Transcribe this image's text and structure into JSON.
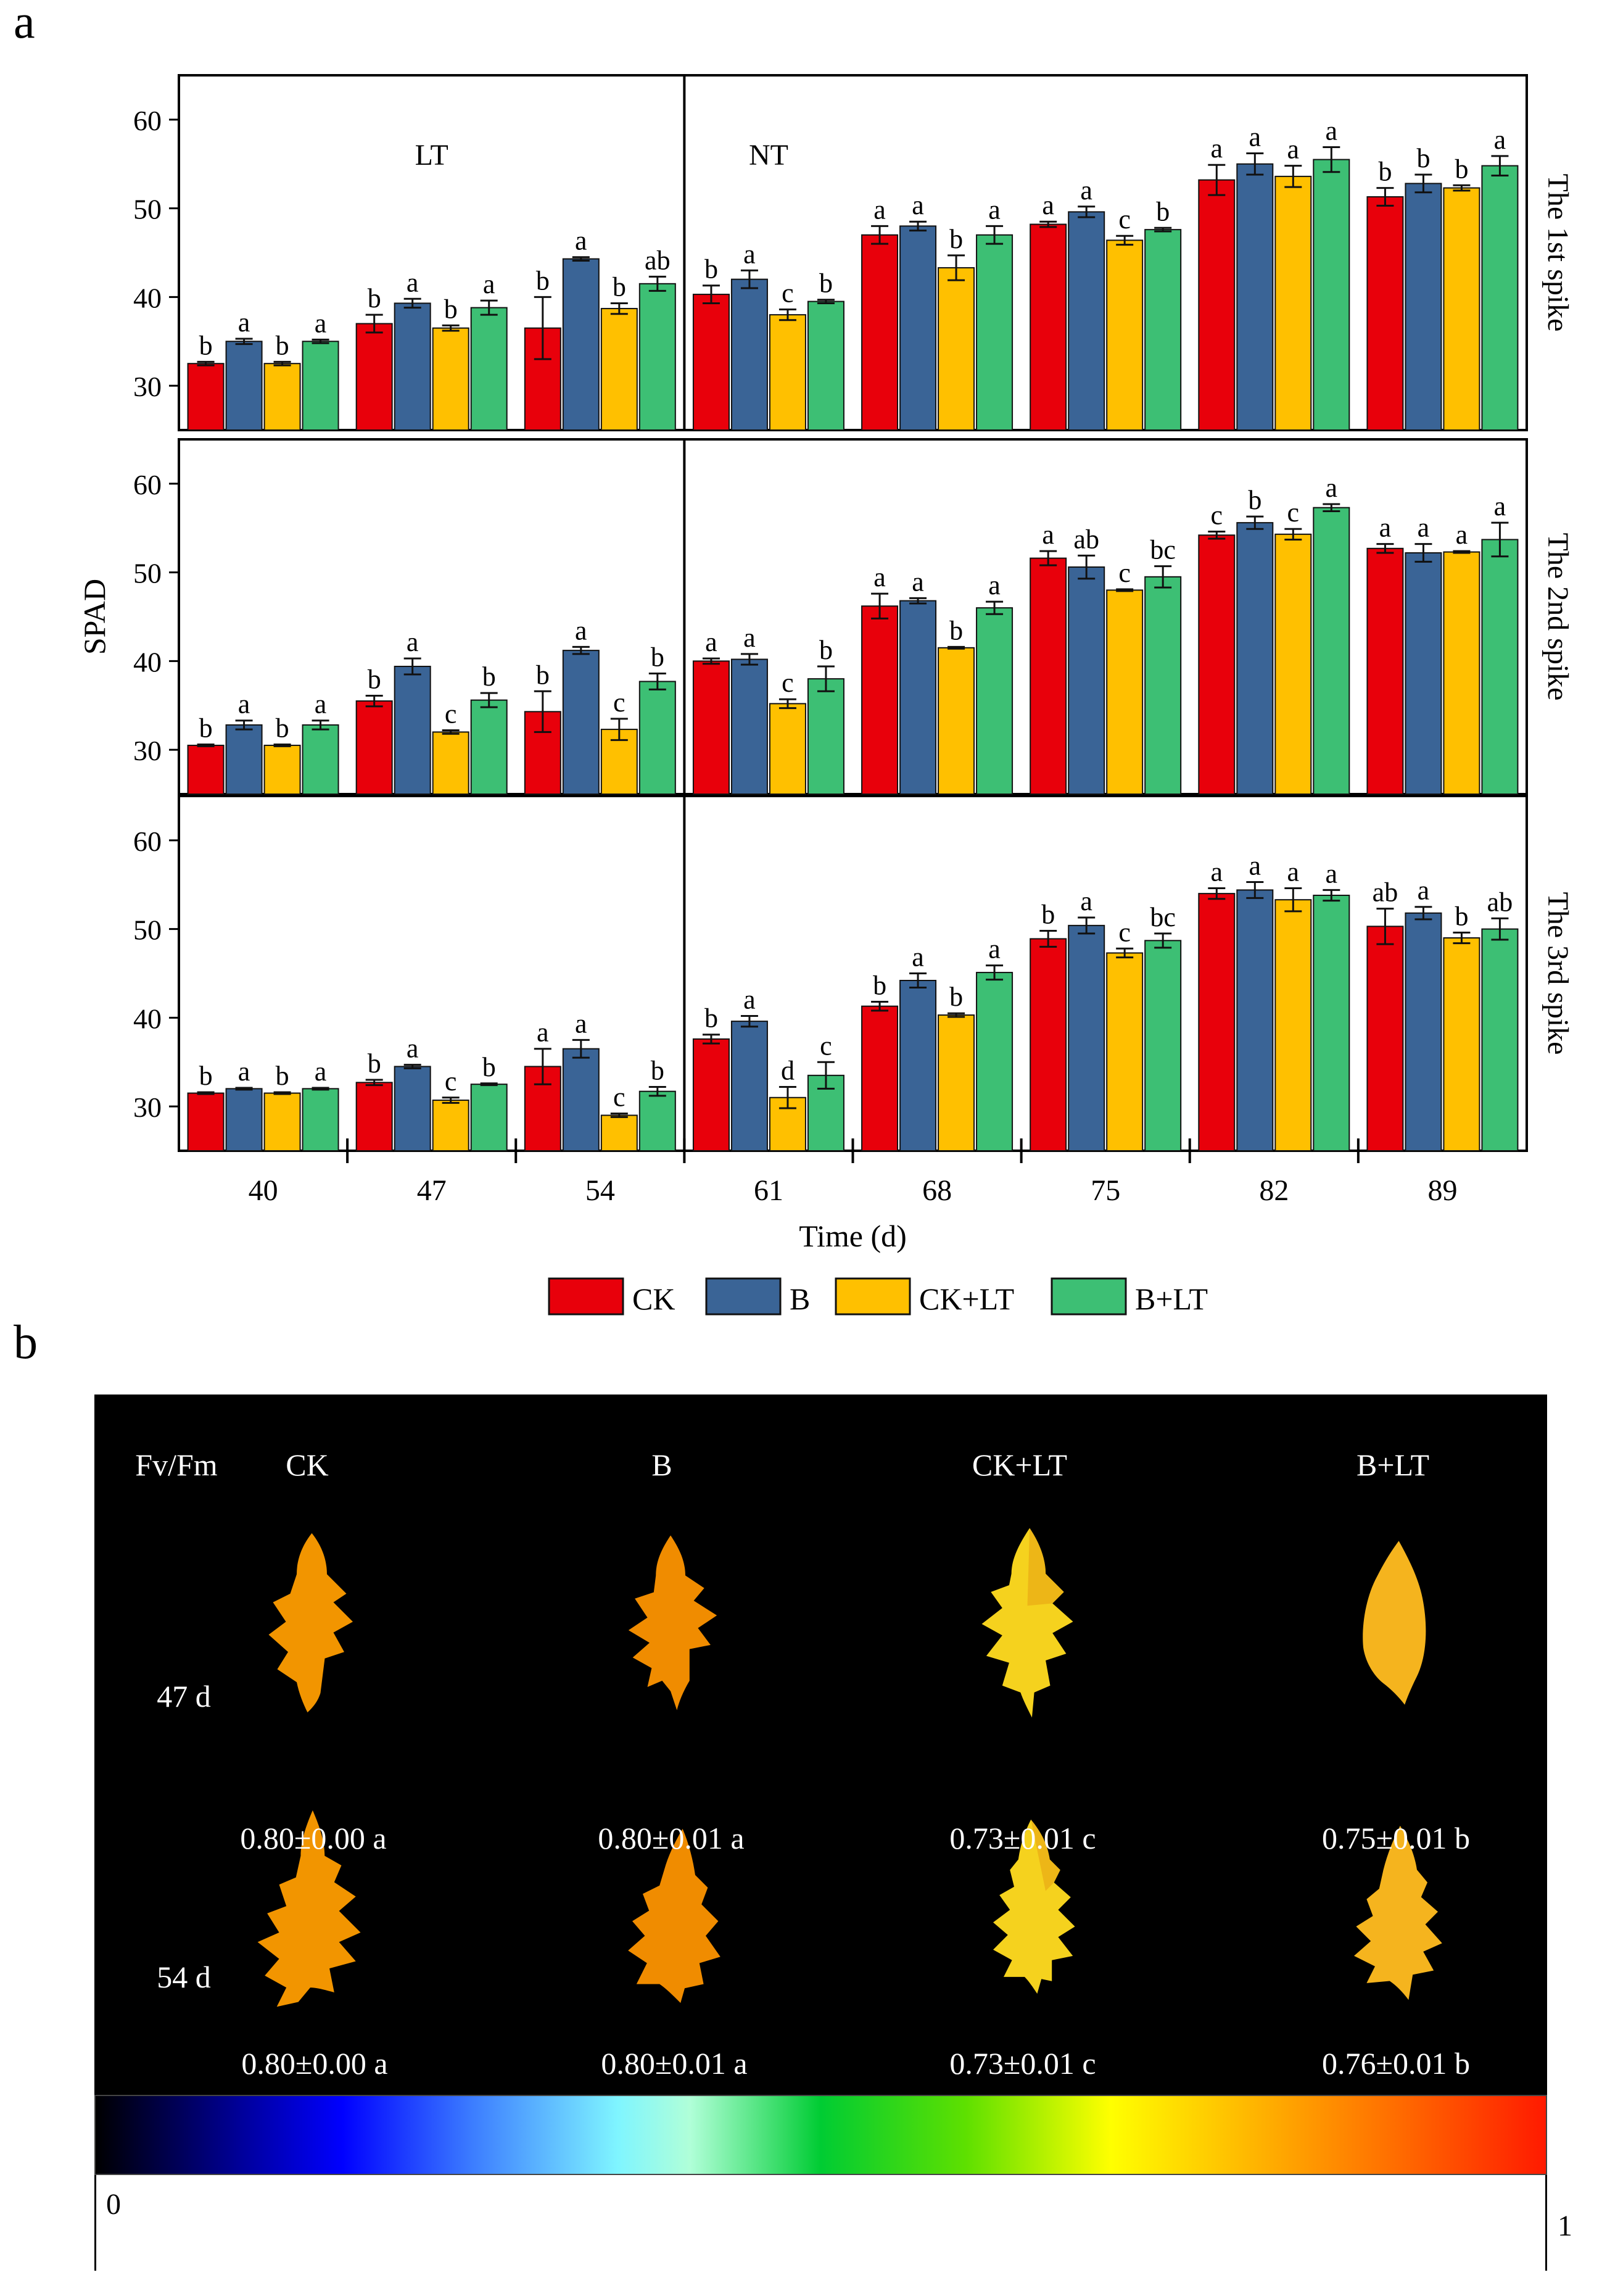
{
  "figure": {
    "panel_a_letter": "a",
    "panel_b_letter": "b"
  },
  "chart_data": {
    "type": "bar",
    "ylabel": "SPAD",
    "xlabel": "Time (d)",
    "categories": [
      "40",
      "47",
      "54",
      "61",
      "68",
      "75",
      "82",
      "89"
    ],
    "yticks": [
      30,
      40,
      50,
      60
    ],
    "ylim": [
      25,
      65
    ],
    "period_labels": [
      "LT",
      "NT"
    ],
    "legend": [
      {
        "name": "CK",
        "color": "#e8000b"
      },
      {
        "name": "B",
        "color": "#3a6496"
      },
      {
        "name": "CK+LT",
        "color": "#ffc000"
      },
      {
        "name": "B+LT",
        "color": "#3dbf74"
      }
    ],
    "panels": [
      {
        "label": "The 1st spike",
        "series": [
          {
            "name": "CK",
            "values": [
              32.5,
              37,
              36.5,
              40.3,
              47,
              48.2,
              53.2,
              51.3
            ],
            "errors": [
              0.2,
              1.0,
              3.5,
              1.0,
              1.0,
              0.3,
              1.7,
              1.0
            ]
          },
          {
            "name": "B",
            "values": [
              35,
              39.3,
              44.3,
              42,
              48,
              49.6,
              55,
              52.8
            ],
            "errors": [
              0.3,
              0.5,
              0.2,
              1.0,
              0.5,
              0.6,
              1.2,
              1.0
            ]
          },
          {
            "name": "CK+LT",
            "values": [
              32.5,
              36.5,
              38.7,
              38,
              43.3,
              46.4,
              53.6,
              52.3
            ],
            "errors": [
              0.2,
              0.3,
              0.6,
              0.6,
              1.4,
              0.5,
              1.2,
              0.3
            ]
          },
          {
            "name": "B+LT",
            "values": [
              35,
              38.8,
              41.5,
              39.5,
              47,
              47.6,
              55.5,
              54.8
            ],
            "errors": [
              0.2,
              0.8,
              0.8,
              0.2,
              1.0,
              0.2,
              1.4,
              1.1
            ]
          }
        ],
        "letters": [
          [
            "b",
            "b",
            "b",
            "b",
            "a",
            "a",
            "a",
            "b"
          ],
          [
            "a",
            "a",
            "a",
            "a",
            "a",
            "a",
            "a",
            "b"
          ],
          [
            "b",
            "b",
            "b",
            "c",
            "b",
            "c",
            "a",
            "b"
          ],
          [
            "a",
            "a",
            "ab",
            "b",
            "a",
            "b",
            "a",
            "a"
          ]
        ]
      },
      {
        "label": "The 2nd spike",
        "series": [
          {
            "name": "CK",
            "values": [
              30.5,
              35.5,
              34.3,
              40,
              46.2,
              51.6,
              54.2,
              52.7
            ],
            "errors": [
              0.1,
              0.6,
              2.3,
              0.3,
              1.4,
              0.8,
              0.4,
              0.5
            ]
          },
          {
            "name": "B",
            "values": [
              32.8,
              39.4,
              41.2,
              40.2,
              46.8,
              50.6,
              55.6,
              52.2
            ],
            "errors": [
              0.5,
              0.9,
              0.4,
              0.6,
              0.3,
              1.3,
              0.7,
              1.0
            ]
          },
          {
            "name": "CK+LT",
            "values": [
              30.5,
              32,
              32.3,
              35.2,
              41.5,
              48,
              54.3,
              52.3
            ],
            "errors": [
              0.1,
              0.2,
              1.2,
              0.5,
              0.1,
              0.1,
              0.6,
              0.1
            ]
          },
          {
            "name": "B+LT",
            "values": [
              32.8,
              35.6,
              37.7,
              38,
              46,
              49.5,
              57.3,
              53.7
            ],
            "errors": [
              0.5,
              0.8,
              0.9,
              1.4,
              0.7,
              1.2,
              0.4,
              1.9
            ]
          }
        ],
        "letters": [
          [
            "b",
            "b",
            "b",
            "a",
            "a",
            "a",
            "c",
            "a"
          ],
          [
            "a",
            "a",
            "a",
            "a",
            "a",
            "ab",
            "b",
            "a"
          ],
          [
            "b",
            "c",
            "c",
            "c",
            "b",
            "c",
            "c",
            "a"
          ],
          [
            "a",
            "b",
            "b",
            "b",
            "a",
            "bc",
            "a",
            "a"
          ]
        ]
      },
      {
        "label": "The 3rd spike",
        "series": [
          {
            "name": "CK",
            "values": [
              31.5,
              32.7,
              34.5,
              37.6,
              41.3,
              48.9,
              54,
              50.3
            ],
            "errors": [
              0.1,
              0.3,
              2.0,
              0.5,
              0.5,
              0.9,
              0.6,
              2.0
            ]
          },
          {
            "name": "B",
            "values": [
              32,
              34.5,
              36.5,
              39.6,
              44.2,
              50.4,
              54.4,
              51.8
            ],
            "errors": [
              0.1,
              0.2,
              1.0,
              0.6,
              0.8,
              0.9,
              0.9,
              0.7
            ]
          },
          {
            "name": "CK+LT",
            "values": [
              31.5,
              30.7,
              29,
              31,
              40.3,
              47.3,
              53.3,
              49
            ],
            "errors": [
              0.1,
              0.3,
              0.2,
              1.2,
              0.2,
              0.5,
              1.3,
              0.6
            ]
          },
          {
            "name": "B+LT",
            "values": [
              32,
              32.5,
              31.7,
              33.5,
              45.1,
              48.7,
              53.8,
              50
            ],
            "errors": [
              0.1,
              0.1,
              0.5,
              1.5,
              0.8,
              0.8,
              0.6,
              1.2
            ]
          }
        ],
        "letters": [
          [
            "b",
            "b",
            "a",
            "b",
            "b",
            "b",
            "a",
            "ab"
          ],
          [
            "a",
            "a",
            "a",
            "a",
            "a",
            "a",
            "a",
            "a"
          ],
          [
            "b",
            "c",
            "c",
            "d",
            "b",
            "c",
            "a",
            "b"
          ],
          [
            "a",
            "b",
            "b",
            "c",
            "a",
            "bc",
            "a",
            "ab"
          ]
        ]
      }
    ]
  },
  "fvfm_panel": {
    "corner_label": "Fv/Fm",
    "columns": [
      "CK",
      "B",
      "CK+LT",
      "B+LT"
    ],
    "rows": [
      {
        "label": "47 d",
        "values": [
          "0.80±0.00 a",
          "0.80±0.01 a",
          "0.73±0.01 c",
          "0.75±0.01 b"
        ]
      },
      {
        "label": "54 d",
        "values": [
          "0.80±0.00 a",
          "0.80±0.01 a",
          "0.73±0.01 c",
          "0.76±0.01 b"
        ]
      }
    ],
    "leaf_colors": [
      "#f29500",
      "#f08c00",
      "#f5d21e",
      "#f5b41e"
    ],
    "colorbar": {
      "min_label": "0",
      "max_label": "1"
    }
  }
}
